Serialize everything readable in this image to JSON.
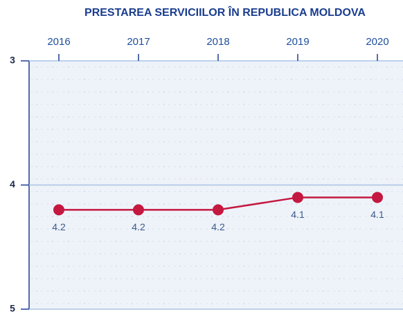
{
  "chart_data": {
    "type": "line",
    "title": "PRESTAREA SERVICIILOR ÎN REPUBLICA MOLDOVA",
    "categories": [
      "2016",
      "2017",
      "2018",
      "2019",
      "2020"
    ],
    "series": [
      {
        "name": null,
        "color": "#c41840",
        "values": [
          4.2,
          4.2,
          4.2,
          4.1,
          4.1
        ]
      }
    ],
    "ylim": [
      3,
      5
    ],
    "yticks": [
      3,
      4,
      5
    ],
    "y_reversed": true,
    "grid": true,
    "x_axis_position": "top"
  }
}
